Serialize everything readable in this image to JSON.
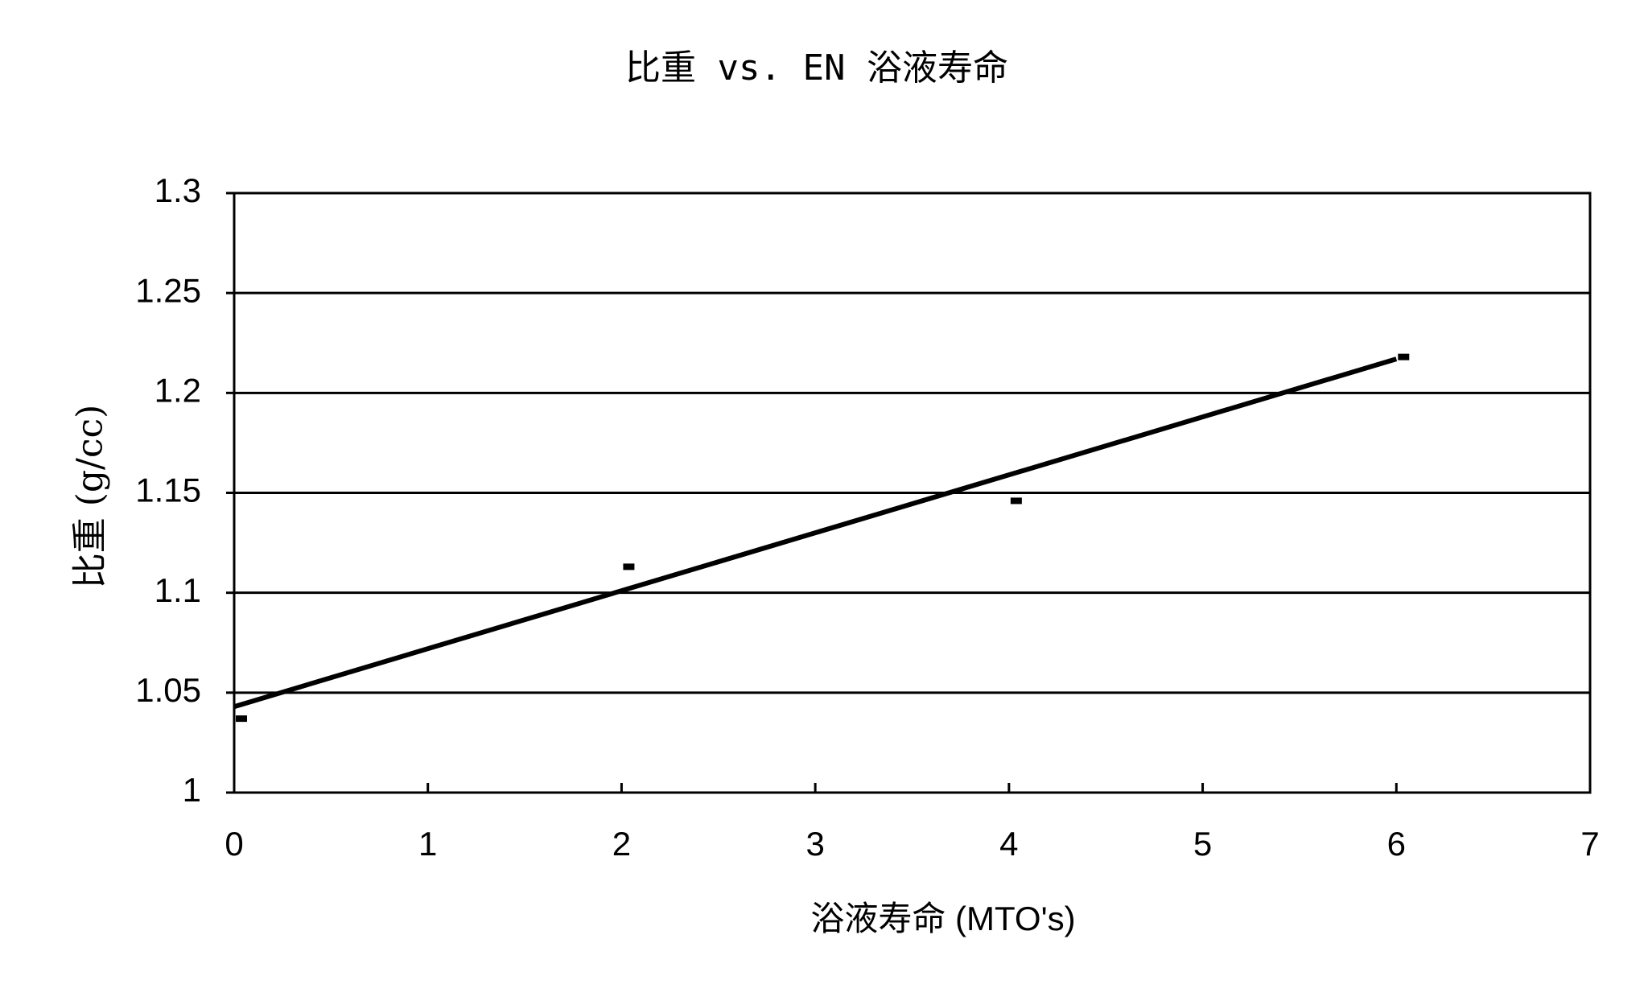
{
  "chart_data": {
    "type": "scatter",
    "title": "比重 vs. EN 浴液寿命",
    "x_label": "浴液寿命 (MTO's)",
    "y_label": "比重 (g/cc)",
    "x": [
      0,
      2,
      4,
      6
    ],
    "values": [
      1.037,
      1.113,
      1.146,
      1.218
    ],
    "color": "#000000",
    "trendline": {
      "x": [
        0,
        6
      ],
      "values": [
        1.043,
        1.217
      ]
    },
    "xlim": [
      0,
      7
    ],
    "xticks": [
      0,
      1,
      2,
      3,
      4,
      5,
      6,
      7
    ],
    "ylim": [
      1,
      1.3
    ],
    "yticks": [
      1,
      1.05,
      1.1,
      1.15,
      1.2,
      1.25,
      1.3
    ],
    "grid": true
  }
}
